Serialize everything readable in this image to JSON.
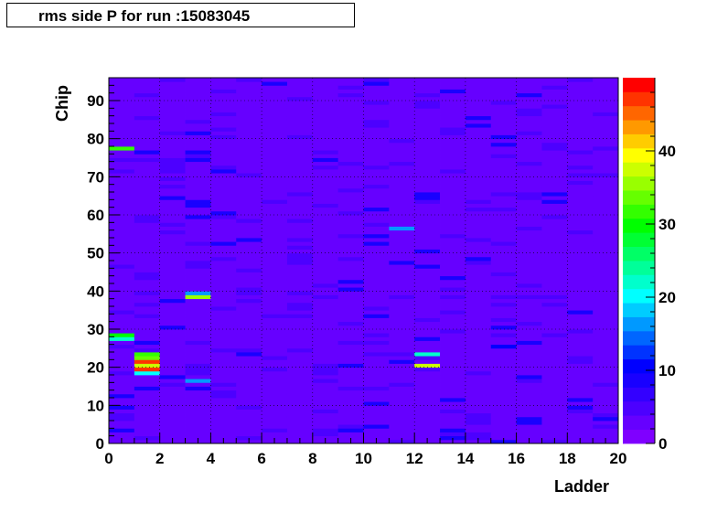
{
  "chart_data": {
    "type": "heatmap",
    "title": "rms side P for run :15083045",
    "xlabel": "Ladder",
    "ylabel": "Chip",
    "xlim": [
      0,
      20
    ],
    "ylim": [
      0,
      96
    ],
    "zlim": [
      0,
      50
    ],
    "x_ticks": [
      0,
      2,
      4,
      6,
      8,
      10,
      12,
      14,
      16,
      18,
      20
    ],
    "y_ticks": [
      0,
      10,
      20,
      30,
      40,
      50,
      60,
      70,
      80,
      90
    ],
    "z_ticks": [
      0,
      10,
      20,
      30,
      40
    ],
    "x_bins": 20,
    "y_bins": 96,
    "colorscale": [
      "#7f00ff",
      "#6600ff",
      "#4c00ff",
      "#3300ff",
      "#1900ff",
      "#0000ff",
      "#0033ff",
      "#0066ff",
      "#0099ff",
      "#00ccff",
      "#00ffff",
      "#00ffcc",
      "#00ff99",
      "#00ff66",
      "#00ff33",
      "#00ff00",
      "#33ff00",
      "#66ff00",
      "#99ff00",
      "#ccff00",
      "#ffff00",
      "#ffcc00",
      "#ff9900",
      "#ff6600",
      "#ff3300",
      "#ff0000"
    ],
    "background_value": 3,
    "highlight_cells": [
      {
        "ladder": 0,
        "chip": 77,
        "value": 31
      },
      {
        "ladder": 0,
        "chip": 28,
        "value": 29
      },
      {
        "ladder": 0,
        "chip": 27,
        "value": 22
      },
      {
        "ladder": 1,
        "chip": 23,
        "value": 31
      },
      {
        "ladder": 1,
        "chip": 22,
        "value": 33
      },
      {
        "ladder": 1,
        "chip": 21,
        "value": 48
      },
      {
        "ladder": 1,
        "chip": 20,
        "value": 37
      },
      {
        "ladder": 1,
        "chip": 19,
        "value": 47
      },
      {
        "ladder": 1,
        "chip": 18,
        "value": 21
      },
      {
        "ladder": 3,
        "chip": 39,
        "value": 16
      },
      {
        "ladder": 3,
        "chip": 38,
        "value": 35
      },
      {
        "ladder": 3,
        "chip": 16,
        "value": 17
      },
      {
        "ladder": 6,
        "chip": 94,
        "value": 9
      },
      {
        "ladder": 11,
        "chip": 56,
        "value": 17
      },
      {
        "ladder": 12,
        "chip": 23,
        "value": 22
      },
      {
        "ladder": 12,
        "chip": 20,
        "value": 38
      },
      {
        "ladder": 15,
        "chip": 25,
        "value": 11
      }
    ]
  }
}
